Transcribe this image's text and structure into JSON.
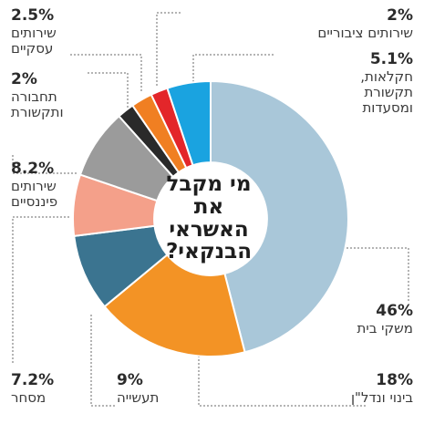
{
  "chart_data": {
    "type": "pie",
    "title": "מי מקבל\nאת האשראי\nהבנקאי?",
    "center_radius_ratio": 0.41,
    "start_angle_deg": -90,
    "direction": "clockwise",
    "slices": [
      {
        "label": "משקי בית",
        "value_label": "46%",
        "value": 46,
        "color": "#a9c7d9"
      },
      {
        "label": "בינוי ונדל\"ן",
        "value_label": "18%",
        "value": 18,
        "color": "#f39325"
      },
      {
        "label": "תעשייה",
        "value_label": "9%",
        "value": 9,
        "color": "#3b7490"
      },
      {
        "label": "מסחר",
        "value_label": "7.2%",
        "value": 7.2,
        "color": "#f4a08a"
      },
      {
        "label": "שירותים\nפיננסיים",
        "value_label": "8.2%",
        "value": 8.2,
        "color": "#9b9b9b"
      },
      {
        "label": "תחבורה\nותקשורת",
        "value_label": "2%",
        "value": 2,
        "color": "#2a2a2a"
      },
      {
        "label": "שירותים\nעסקיים",
        "value_label": "2.5%",
        "value": 2.5,
        "color": "#f07f22"
      },
      {
        "label": "שירותים ציבוריים",
        "value_label": "2%",
        "value": 2,
        "color": "#e3262a"
      },
      {
        "label": "חקלאות,\nתקשורת\nומסעדות",
        "value_label": "5.1%",
        "value": 5.1,
        "color": "#1aa3e0"
      }
    ]
  }
}
